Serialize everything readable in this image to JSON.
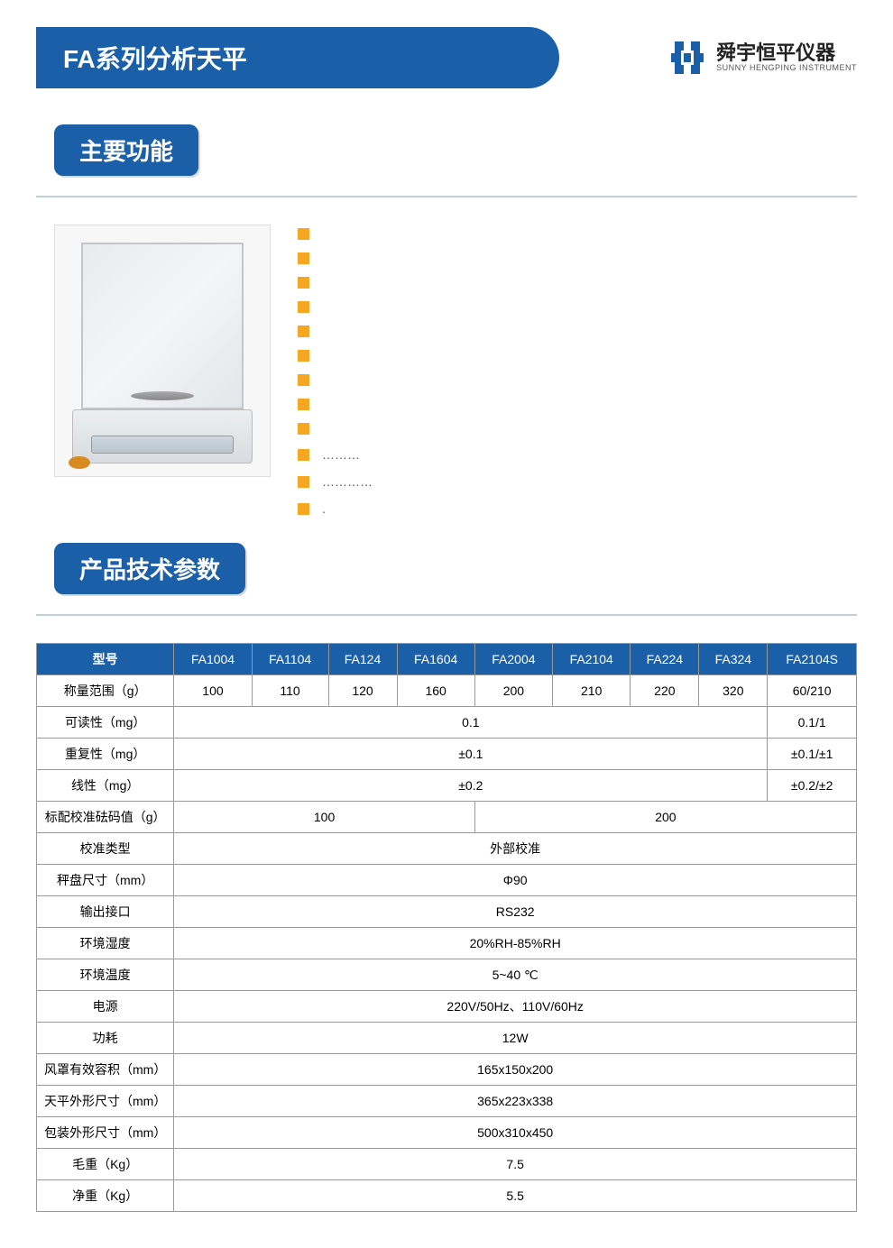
{
  "header": {
    "title": "FA系列分析天平",
    "logo_cn": "舜宇恒平仪器",
    "logo_en": "SUNNY HENGPING INSTRUMENT"
  },
  "section_labels": {
    "features": "主要功能",
    "specs": "产品技术参数"
  },
  "bullets": [
    "",
    "",
    "",
    "",
    "",
    "",
    "",
    "",
    "",
    "………",
    "…………",
    "."
  ],
  "colors": {
    "primary": "#1b5fa8",
    "accent": "#f5a623",
    "divider": "#bfcfe0",
    "border": "#999999"
  },
  "spec_header": [
    "型号",
    "FA1004",
    "FA1104",
    "FA124",
    "FA1604",
    "FA2004",
    "FA2104",
    "FA224",
    "FA324",
    "FA2104S"
  ],
  "spec_rows": [
    {
      "label": "称量范围（g）",
      "cells": [
        {
          "v": "100"
        },
        {
          "v": "110"
        },
        {
          "v": "120"
        },
        {
          "v": "160"
        },
        {
          "v": "200"
        },
        {
          "v": "210"
        },
        {
          "v": "220"
        },
        {
          "v": "320"
        },
        {
          "v": "60/210"
        }
      ]
    },
    {
      "label": "可读性（mg）",
      "cells": [
        {
          "v": "0.1",
          "span": 8
        },
        {
          "v": "0.1/1"
        }
      ]
    },
    {
      "label": "重复性（mg）",
      "cells": [
        {
          "v": "±0.1",
          "span": 8
        },
        {
          "v": "±0.1/±1"
        }
      ]
    },
    {
      "label": "线性（mg）",
      "cells": [
        {
          "v": "±0.2",
          "span": 8
        },
        {
          "v": "±0.2/±2"
        }
      ]
    },
    {
      "label": "标配校准砝码值（g）",
      "cells": [
        {
          "v": "100",
          "span": 4
        },
        {
          "v": "200",
          "span": 5
        }
      ]
    },
    {
      "label": "校准类型",
      "cells": [
        {
          "v": "外部校准",
          "span": 9
        }
      ]
    },
    {
      "label": "秤盘尺寸（mm）",
      "cells": [
        {
          "v": "Φ90",
          "span": 9
        }
      ]
    },
    {
      "label": "输出接口",
      "cells": [
        {
          "v": "RS232",
          "span": 9
        }
      ]
    },
    {
      "label": "环境湿度",
      "cells": [
        {
          "v": "20%RH-85%RH",
          "span": 9
        }
      ]
    },
    {
      "label": "环境温度",
      "cells": [
        {
          "v": "5~40 ℃",
          "span": 9
        }
      ]
    },
    {
      "label": "电源",
      "cells": [
        {
          "v": "220V/50Hz、110V/60Hz",
          "span": 9
        }
      ]
    },
    {
      "label": "功耗",
      "cells": [
        {
          "v": "12W",
          "span": 9
        }
      ]
    },
    {
      "label": "风罩有效容积（mm）",
      "cells": [
        {
          "v": "165x150x200",
          "span": 9
        }
      ]
    },
    {
      "label": "天平外形尺寸（mm）",
      "cells": [
        {
          "v": "365x223x338",
          "span": 9
        }
      ]
    },
    {
      "label": "包装外形尺寸（mm）",
      "cells": [
        {
          "v": "500x310x450",
          "span": 9
        }
      ]
    },
    {
      "label": "毛重（Kg）",
      "cells": [
        {
          "v": "7.5",
          "span": 9
        }
      ]
    },
    {
      "label": "净重（Kg）",
      "cells": [
        {
          "v": "5.5",
          "span": 9
        }
      ]
    }
  ]
}
